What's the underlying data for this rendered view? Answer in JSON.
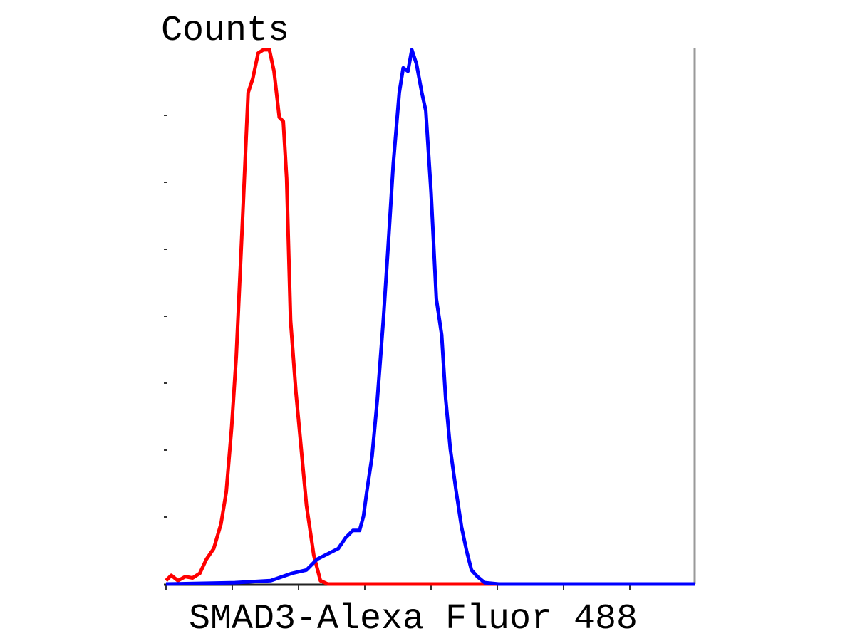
{
  "chart_data": {
    "type": "line",
    "y_label": "Counts",
    "x_label": "SMAD3-Alexa Fluor 488",
    "xlim": [
      0,
      8
    ],
    "ylim": [
      0,
      8
    ],
    "xticks": [
      0,
      1,
      2,
      3,
      4,
      5,
      6,
      7
    ],
    "yticks": [
      1,
      2,
      3,
      4,
      5,
      6,
      7
    ],
    "series": [
      {
        "color": "#ff0000",
        "x": [
          0,
          0.08,
          0.18,
          0.29,
          0.4,
          0.51,
          0.61,
          0.72,
          0.83,
          0.91,
          0.99,
          1.06,
          1.15,
          1.24,
          1.31,
          1.39,
          1.47,
          1.56,
          1.63,
          1.71,
          1.77,
          1.82,
          1.88,
          1.96,
          2.03,
          2.12,
          2.23,
          2.33,
          2.44,
          7.98
        ],
        "values": [
          0.05,
          0.13,
          0.05,
          0.11,
          0.09,
          0.16,
          0.37,
          0.53,
          0.9,
          1.38,
          2.34,
          3.4,
          5.32,
          7.34,
          7.55,
          7.93,
          7.98,
          7.98,
          7.66,
          6.97,
          6.91,
          6.06,
          3.94,
          2.87,
          2.13,
          1.17,
          0.43,
          0.05,
          0,
          0
        ]
      },
      {
        "color": "#0000ff",
        "x": [
          0,
          1.04,
          1.58,
          1.9,
          2.12,
          2.28,
          2.44,
          2.6,
          2.71,
          2.82,
          2.92,
          2.98,
          3.03,
          3.11,
          3.19,
          3.28,
          3.35,
          3.43,
          3.52,
          3.58,
          3.65,
          3.71,
          3.78,
          3.86,
          3.92,
          4.0,
          4.08,
          4.16,
          4.22,
          4.29,
          4.38,
          4.46,
          4.54,
          4.61,
          4.7,
          4.81,
          5.02,
          7.98
        ],
        "values": [
          0,
          0.02,
          0.05,
          0.16,
          0.21,
          0.37,
          0.45,
          0.53,
          0.69,
          0.8,
          0.8,
          1.01,
          1.38,
          1.91,
          2.77,
          3.94,
          5.0,
          6.28,
          7.34,
          7.71,
          7.66,
          7.98,
          7.77,
          7.34,
          7.07,
          5.85,
          4.26,
          3.72,
          2.77,
          2.02,
          1.38,
          0.85,
          0.48,
          0.21,
          0.11,
          0.02,
          0,
          0
        ]
      }
    ]
  }
}
